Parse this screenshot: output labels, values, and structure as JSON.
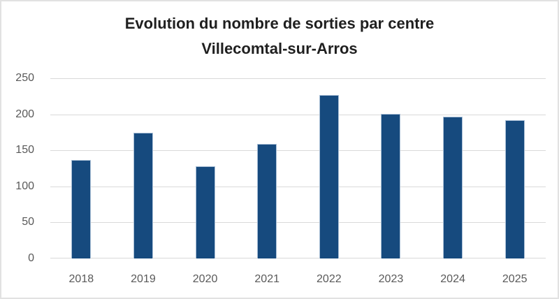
{
  "chart_data": {
    "type": "bar",
    "title": "Evolution du nombre de sorties par centre",
    "subtitle": "Villecomtal-sur-Arros",
    "categories": [
      "2018",
      "2019",
      "2020",
      "2021",
      "2022",
      "2023",
      "2024",
      "2025"
    ],
    "values": [
      137,
      174,
      128,
      159,
      227,
      201,
      197,
      192
    ],
    "xlabel": "",
    "ylabel": "",
    "ylim": [
      0,
      250
    ],
    "yticks": [
      0,
      50,
      100,
      150,
      200,
      250
    ],
    "grid": true,
    "legend": false,
    "colors": {
      "bar": "#164A7E",
      "bar_edge": "#A9BFD6",
      "gridline": "#D9D9D9",
      "axis_labels": "#595959",
      "title": "#1F1F1F",
      "frame_border": "#E2E2E2",
      "background": "#FFFFFF"
    }
  }
}
